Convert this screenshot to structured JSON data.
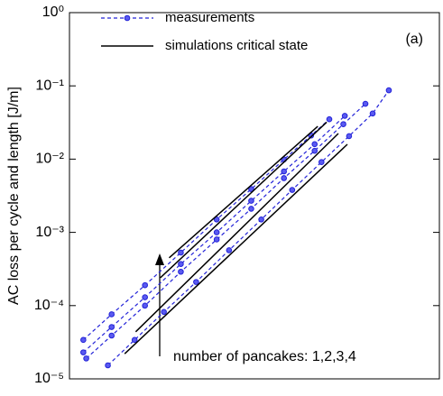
{
  "chart_data": {
    "type": "line",
    "ylabel": "AC loss per cycle and length [J/m]",
    "annotation": "number of pancakes: 1,2,3,4",
    "panel_label": "(a)",
    "xscale": "log",
    "yscale": "log",
    "xlim": [
      10,
      100
    ],
    "ylim": [
      1e-05,
      1
    ],
    "yticks": [
      {
        "value": 1,
        "label": "10⁰"
      },
      {
        "value": 0.1,
        "label": "10⁻¹"
      },
      {
        "value": 0.01,
        "label": "10⁻²"
      },
      {
        "value": 0.001,
        "label": "10⁻³"
      },
      {
        "value": 0.0001,
        "label": "10⁻⁴"
      },
      {
        "value": 1e-05,
        "label": "10⁻⁵"
      }
    ],
    "legend": "upper left",
    "series": [
      {
        "name": "measurements",
        "color": "#2323d8",
        "style": "dashed-marker",
        "curves": [
          {
            "x": [
              12.7,
              15,
              18,
              22,
              27,
              33,
              40,
              48,
              57,
              66,
              73
            ],
            "values": [
              1.53e-05,
              3.4e-05,
              8.2e-05,
              0.00021,
              0.00057,
              0.0015,
              0.0038,
              0.0091,
              0.0206,
              0.042,
              0.087
            ]
          },
          {
            "x": [
              11.1,
              13,
              16,
              20,
              25,
              31,
              38,
              46,
              55,
              63.1
            ],
            "values": [
              1.9e-05,
              3.9e-05,
              0.0001,
              0.00029,
              0.0008,
              0.0021,
              0.0055,
              0.013,
              0.03,
              0.057
            ]
          },
          {
            "x": [
              10.9,
              13,
              16,
              20,
              25,
              31,
              38,
              46,
              55.5
            ],
            "values": [
              2.3e-05,
              5.1e-05,
              0.00013,
              0.00037,
              0.001,
              0.0027,
              0.0068,
              0.016,
              0.039
            ]
          },
          {
            "x": [
              10.9,
              13,
              16,
              20,
              25,
              31,
              38,
              45,
              50.4
            ],
            "values": [
              3.4e-05,
              7.6e-05,
              0.00019,
              0.00053,
              0.0015,
              0.0039,
              0.0099,
              0.021,
              0.035
            ]
          }
        ]
      },
      {
        "name": "simulations critical state",
        "color": "#000000",
        "style": "solid",
        "curves": [
          {
            "x": [
              14.1,
              56.4
            ],
            "values": [
              2.2e-05,
              0.0159
            ]
          },
          {
            "x": [
              15.1,
              53.3
            ],
            "values": [
              4.4e-05,
              0.0224
            ]
          },
          {
            "x": [
              17.6,
              49.6
            ],
            "values": [
              0.00024,
              0.032
            ]
          },
          {
            "x": [
              18.6,
              46.9
            ],
            "values": [
              0.00045,
              0.028
            ]
          }
        ]
      }
    ]
  }
}
